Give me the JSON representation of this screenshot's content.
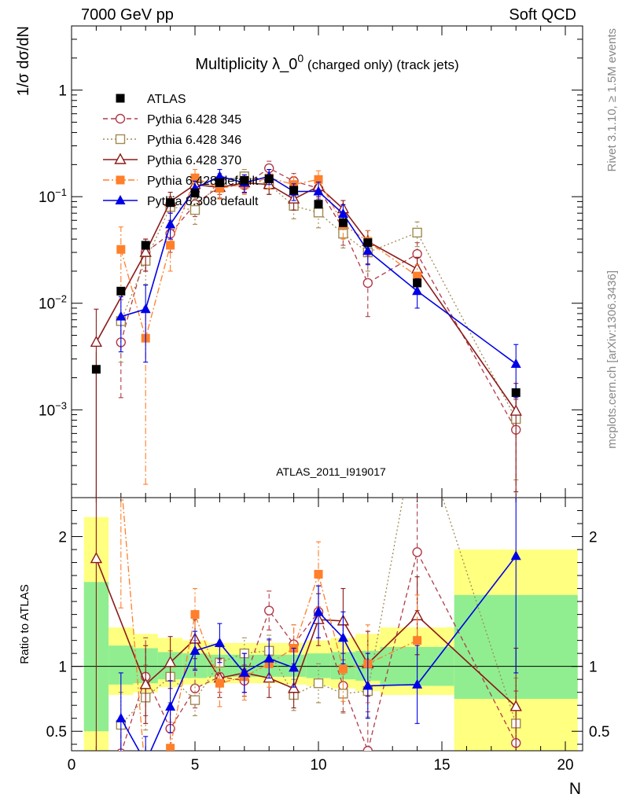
{
  "header": {
    "left": "7000 GeV pp",
    "right": "Soft QCD"
  },
  "side_text": {
    "top": "Rivet 3.1.10, ≥ 1.5M events",
    "bottom": "mcplots.cern.ch [arXiv:1306.3436]"
  },
  "watermark": "ATLAS_2011_I919017",
  "chart_data": [
    {
      "type": "scatter",
      "title": "Multiplicity λ_0⁰ (charged only) (track jets)",
      "title_main": "Multiplicity λ_0",
      "title_sup": "0",
      "title_sub": "(charged only) (track jets)",
      "ylabel": "1/σ dσ/dN",
      "yscale": "log",
      "ylim": [
        0.00015,
        4
      ],
      "xlim": [
        0,
        20.7
      ],
      "y_ticks": [
        {
          "v": 0.001,
          "base": "10",
          "exp": "−3"
        },
        {
          "v": 0.01,
          "base": "10",
          "exp": "−2"
        },
        {
          "v": 0.1,
          "base": "10",
          "exp": "−1"
        },
        {
          "v": 1,
          "base": "1",
          "exp": ""
        }
      ],
      "legend_position": "top-left",
      "series": [
        {
          "name": "ATLAS",
          "color": "#000000",
          "marker": "square-filled",
          "line": "none",
          "x": [
            1,
            2,
            3,
            4,
            5,
            6,
            7,
            8,
            9,
            10,
            11,
            12,
            14,
            18
          ],
          "y": [
            0.0024,
            0.013,
            0.035,
            0.088,
            0.108,
            0.135,
            0.142,
            0.147,
            0.115,
            0.085,
            0.057,
            0.037,
            0.0155,
            0.00145
          ]
        },
        {
          "name": "Pythia 6.428 345",
          "color": "#b03a48",
          "marker": "circle-open",
          "line": "dashed",
          "x": [
            2,
            3,
            4,
            5,
            6,
            7,
            8,
            9,
            10,
            11,
            12,
            14,
            18
          ],
          "y": [
            0.0043,
            0.03,
            0.045,
            0.085,
            0.125,
            0.128,
            0.185,
            0.14,
            0.12,
            0.05,
            0.0155,
            0.029,
            0.00065
          ],
          "err": [
            0.003,
            0.01,
            0.015,
            0.02,
            0.02,
            0.02,
            0.03,
            0.025,
            0.025,
            0.015,
            0.008,
            0.008,
            0.0006
          ]
        },
        {
          "name": "Pythia 6.428 346",
          "color": "#a08a50",
          "marker": "square-open",
          "line": "dotted",
          "x": [
            2,
            3,
            4,
            5,
            6,
            7,
            8,
            9,
            10,
            11,
            12,
            14,
            18
          ],
          "y": [
            0.0068,
            0.025,
            0.08,
            0.075,
            0.14,
            0.155,
            0.13,
            0.082,
            0.071,
            0.045,
            0.03,
            0.046,
            0.00082
          ],
          "err": [
            0.004,
            0.01,
            0.02,
            0.02,
            0.025,
            0.025,
            0.025,
            0.02,
            0.02,
            0.012,
            0.01,
            0.012,
            0.0006
          ]
        },
        {
          "name": "Pythia 6.428 370",
          "color": "#8b1a1a",
          "marker": "triangle-open",
          "line": "solid",
          "x": [
            1,
            3,
            4,
            5,
            6,
            7,
            8,
            9,
            10,
            11,
            12,
            14,
            18
          ],
          "y": [
            0.0043,
            0.03,
            0.09,
            0.13,
            0.122,
            0.135,
            0.13,
            0.095,
            0.125,
            0.077,
            0.038,
            0.021,
            0.00097
          ],
          "err": [
            0.0045,
            0.01,
            0.02,
            0.025,
            0.025,
            0.025,
            0.025,
            0.02,
            0.025,
            0.015,
            0.01,
            0.006,
            0.0008
          ]
        },
        {
          "name": "Pythia 6.428 default",
          "color": "#ff7f2a",
          "marker": "square-filled",
          "line": "dashdot",
          "x": [
            2,
            3,
            4,
            5,
            6,
            7,
            8,
            9,
            10,
            11,
            12,
            14
          ],
          "y": [
            0.032,
            0.0047,
            0.035,
            0.15,
            0.12,
            0.13,
            0.15,
            0.13,
            0.145,
            0.055,
            0.038,
            0.018
          ],
          "err": [
            0.02,
            0.0045,
            0.015,
            0.03,
            0.025,
            0.025,
            0.03,
            0.025,
            0.03,
            0.015,
            0.01,
            0.005
          ]
        },
        {
          "name": "Pythia 8.308 default",
          "color": "#0000e6",
          "marker": "triangle-filled",
          "line": "solid",
          "x": [
            2,
            3,
            4,
            5,
            6,
            7,
            8,
            9,
            10,
            11,
            12,
            14,
            18
          ],
          "y": [
            0.0075,
            0.0088,
            0.055,
            0.12,
            0.155,
            0.135,
            0.155,
            0.112,
            0.112,
            0.069,
            0.031,
            0.013,
            0.0027
          ],
          "err": [
            0.004,
            0.006,
            0.015,
            0.02,
            0.025,
            0.025,
            0.025,
            0.02,
            0.025,
            0.015,
            0.008,
            0.004,
            0.0014
          ]
        }
      ]
    },
    {
      "type": "scatter",
      "xlabel": "N",
      "ylabel": "Ratio to ATLAS",
      "ylim": [
        0.35,
        2.3
      ],
      "xlim": [
        0,
        20.7
      ],
      "x_ticks": [
        0,
        5,
        10,
        15,
        20
      ],
      "y_ticks_left": [
        0.5,
        1,
        2
      ],
      "y_ticks_right": [
        0.5,
        1,
        2
      ],
      "reference_line": 1,
      "bands": [
        {
          "x0": 0.5,
          "x1": 1.5,
          "yellow": [
            0.33,
            2.15
          ],
          "green": [
            0.5,
            1.65
          ]
        },
        {
          "x0": 1.5,
          "x1": 2.5,
          "yellow": [
            0.78,
            1.3
          ],
          "green": [
            0.86,
            1.16
          ]
        },
        {
          "x0": 2.5,
          "x1": 3.5,
          "yellow": [
            0.8,
            1.25
          ],
          "green": [
            0.87,
            1.14
          ]
        },
        {
          "x0": 3.5,
          "x1": 4.5,
          "yellow": [
            0.84,
            1.22
          ],
          "green": [
            0.9,
            1.11
          ]
        },
        {
          "x0": 4.5,
          "x1": 5.5,
          "yellow": [
            0.86,
            1.2
          ],
          "green": [
            0.91,
            1.1
          ]
        },
        {
          "x0": 5.5,
          "x1": 6.5,
          "yellow": [
            0.87,
            1.18
          ],
          "green": [
            0.92,
            1.09
          ]
        },
        {
          "x0": 6.5,
          "x1": 7.5,
          "yellow": [
            0.87,
            1.18
          ],
          "green": [
            0.92,
            1.09
          ]
        },
        {
          "x0": 7.5,
          "x1": 8.5,
          "yellow": [
            0.87,
            1.18
          ],
          "green": [
            0.92,
            1.09
          ]
        },
        {
          "x0": 8.5,
          "x1": 9.5,
          "yellow": [
            0.86,
            1.18
          ],
          "green": [
            0.92,
            1.09
          ]
        },
        {
          "x0": 9.5,
          "x1": 10.5,
          "yellow": [
            0.85,
            1.2
          ],
          "green": [
            0.91,
            1.1
          ]
        },
        {
          "x0": 10.5,
          "x1": 11.5,
          "yellow": [
            0.83,
            1.22
          ],
          "green": [
            0.9,
            1.11
          ]
        },
        {
          "x0": 11.5,
          "x1": 12.5,
          "yellow": [
            0.81,
            1.25
          ],
          "green": [
            0.89,
            1.12
          ]
        },
        {
          "x0": 12.5,
          "x1": 15.5,
          "yellow": [
            0.78,
            1.3
          ],
          "green": [
            0.85,
            1.15
          ]
        },
        {
          "x0": 15.5,
          "x1": 20.5,
          "yellow": [
            0.35,
            1.9
          ],
          "green": [
            0.75,
            1.55
          ]
        }
      ],
      "series": [
        {
          "name": "Pythia 6.428 345",
          "color": "#b03a48",
          "marker": "circle-open",
          "line": "dashed",
          "x": [
            2,
            3,
            4,
            5,
            6,
            7,
            8,
            9,
            10,
            11,
            12,
            14,
            18
          ],
          "y": [
            0.33,
            0.92,
            0.52,
            0.83,
            0.92,
            0.89,
            1.43,
            1.17,
            1.42,
            0.85,
            0.35,
            1.88,
            0.41
          ],
          "err": [
            0.25,
            0.3,
            0.2,
            0.15,
            0.12,
            0.12,
            0.15,
            0.15,
            0.2,
            0.2,
            0.3,
            0.45,
            0.4
          ]
        },
        {
          "name": "Pythia 6.428 346",
          "color": "#a08a50",
          "marker": "square-open",
          "line": "dotted",
          "x": [
            2,
            3,
            4,
            5,
            6,
            7,
            8,
            9,
            10,
            11,
            12,
            14,
            18
          ],
          "y": [
            0.55,
            0.76,
            0.92,
            0.74,
            1.03,
            1.1,
            1.12,
            0.78,
            0.87,
            0.79,
            0.81,
            2.9,
            0.56
          ],
          "err": [
            0.25,
            0.25,
            0.2,
            0.12,
            0.12,
            0.12,
            0.12,
            0.12,
            0.15,
            0.15,
            0.2,
            0.4,
            0.35
          ]
        },
        {
          "name": "Pythia 6.428 370",
          "color": "#8b1a1a",
          "marker": "triangle-open",
          "line": "solid",
          "x": [
            1,
            3,
            4,
            5,
            6,
            7,
            8,
            9,
            10,
            11,
            12,
            14,
            18
          ],
          "y": [
            1.83,
            0.86,
            1.03,
            1.21,
            0.91,
            0.95,
            0.91,
            0.83,
            1.36,
            1.35,
            1.02,
            1.39,
            0.69
          ],
          "err": [
            1.7,
            0.3,
            0.2,
            0.15,
            0.15,
            0.15,
            0.15,
            0.15,
            0.2,
            0.25,
            0.25,
            0.3,
            0.45
          ]
        },
        {
          "name": "Pythia 6.428 default",
          "color": "#ff7f2a",
          "marker": "square-filled",
          "line": "dashdot",
          "x": [
            2,
            3,
            4,
            5,
            6,
            7,
            8,
            9,
            10,
            11,
            12,
            14
          ],
          "y": [
            2.45,
            0.14,
            0.37,
            1.4,
            0.87,
            0.92,
            1.02,
            1.14,
            1.71,
            0.98,
            1.02,
            1.2
          ],
          "err": [
            1.0,
            0.14,
            0.2,
            0.2,
            0.18,
            0.18,
            0.18,
            0.18,
            0.25,
            0.25,
            0.3,
            0.35
          ]
        },
        {
          "name": "Pythia 8.308 default",
          "color": "#0000e6",
          "marker": "triangle-filled",
          "line": "solid",
          "x": [
            2,
            3,
            4,
            5,
            6,
            7,
            8,
            9,
            10,
            11,
            12,
            14,
            18
          ],
          "y": [
            0.6,
            0.26,
            0.69,
            1.12,
            1.18,
            0.95,
            1.06,
            0.99,
            1.42,
            1.22,
            0.85,
            0.86,
            1.85
          ],
          "err": [
            0.35,
            0.2,
            0.2,
            0.15,
            0.15,
            0.15,
            0.15,
            0.15,
            0.2,
            0.2,
            0.25,
            0.3,
            0.9
          ]
        }
      ]
    }
  ]
}
